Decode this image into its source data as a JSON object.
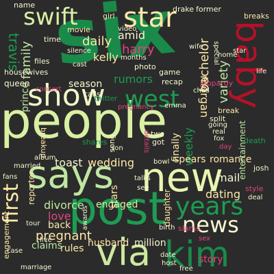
{
  "words": [
    {
      "text": "six",
      "color": "#1a8a4a"
    },
    {
      "text": "people",
      "color": "#d9f0a3"
    },
    {
      "text": "post",
      "color": "#1e9c52"
    },
    {
      "text": "says",
      "color": "#bfe6a2"
    },
    {
      "text": "new",
      "color": "#e8f5b0"
    },
    {
      "text": "via",
      "color": "#cfe8a0"
    },
    {
      "text": "kim",
      "color": "#1a8a4a"
    },
    {
      "text": "show",
      "color": "#f0f7c8"
    },
    {
      "text": "baby",
      "color": "#b3122a"
    },
    {
      "text": "star",
      "color": "#ffe9a8"
    },
    {
      "text": "swift",
      "color": "#d9f0a3"
    },
    {
      "text": "west",
      "color": "#1e9c52"
    },
    {
      "text": "years",
      "color": "#1e9c52"
    },
    {
      "text": "news",
      "color": "#f7f7d0"
    },
    {
      "text": "first",
      "color": "#ffe9a8"
    },
    {
      "text": "family",
      "color": "#bfe6a2"
    },
    {
      "text": "prince",
      "color": "#bfe6a2"
    },
    {
      "text": "travis",
      "color": "#1e9c52"
    },
    {
      "text": "daily",
      "color": "#ffe9a8"
    },
    {
      "text": "harry",
      "color": "#e0457b"
    },
    {
      "text": "kelly",
      "color": "#ffe9a8"
    },
    {
      "text": "amid",
      "color": "#f7f7d0"
    },
    {
      "text": "rumors",
      "color": "#1e9c52"
    },
    {
      "text": "bachelor",
      "color": "#ffe9a8"
    },
    {
      "text": "variety",
      "color": "#bfe6a2"
    },
    {
      "text": "morgan",
      "color": "#ffe9a8"
    },
    {
      "text": "dating",
      "color": "#ffe9a8"
    },
    {
      "text": "pregnant",
      "color": "#ffe9a8"
    },
    {
      "text": "husband",
      "color": "#ffe9a8"
    },
    {
      "text": "million",
      "color": "#f7f7d0"
    },
    {
      "text": "rules",
      "color": "#ffe9a8"
    },
    {
      "text": "engaged",
      "color": "#d9f0a3"
    },
    {
      "text": "divorce",
      "color": "#bfe6a2"
    },
    {
      "text": "wedding",
      "color": "#ffe9a8"
    },
    {
      "text": "toast",
      "color": "#f7f7d0"
    },
    {
      "text": "love",
      "color": "#e0457b"
    },
    {
      "text": "mail",
      "color": "#f7f7d0"
    },
    {
      "text": "romance",
      "color": "#ffe9a8"
    },
    {
      "text": "season",
      "color": "#f7f7d0"
    },
    {
      "text": "weekly",
      "color": "#1e9c52"
    },
    {
      "text": "finally",
      "color": "#ffe9a8"
    },
    {
      "text": "stars",
      "color": "#ffe9a8"
    },
    {
      "text": "spears",
      "color": "#ffe9a8"
    },
    {
      "text": "story",
      "color": "#e0457b"
    },
    {
      "text": "back",
      "color": "#ffe9a8"
    },
    {
      "text": "claims",
      "color": "#bfe6a2"
    },
    {
      "text": "daughter",
      "color": "#ffe9a8"
    },
    {
      "text": "reporter",
      "color": "#ffe9a8"
    },
    {
      "text": "engagement",
      "color": "#ffe9a8"
    },
    {
      "text": "entertainment",
      "color": "#bfe6a2"
    },
    {
      "text": "breakup",
      "color": "#ffe9a8"
    },
    {
      "text": "queen",
      "color": "#f7f7d0"
    },
    {
      "text": "movie",
      "color": "#ffe9a8"
    },
    {
      "text": "girl",
      "color": "#ffe9a8"
    },
    {
      "text": "video",
      "color": "#f7f7d0"
    },
    {
      "text": "drake",
      "color": "#f7f7d0"
    },
    {
      "text": "former",
      "color": "#f7f7d0"
    },
    {
      "text": "breaks",
      "color": "#ffe9a8"
    },
    {
      "text": "life",
      "color": "#f7f7d0"
    },
    {
      "text": "name",
      "color": "#f7f7d0"
    },
    {
      "text": "time",
      "color": "#f7f7d0"
    },
    {
      "text": "files",
      "color": "#f7f7d0"
    },
    {
      "text": "housewives",
      "color": "#f7f7d0"
    },
    {
      "text": "silence",
      "color": "#f7f7d0"
    },
    {
      "text": "photo",
      "color": "#f7f7d0"
    },
    {
      "text": "game",
      "color": "#f7f7d0"
    },
    {
      "text": "recap",
      "color": "#f7f7d0"
    },
    {
      "text": "home",
      "color": "#f7f7d0"
    },
    {
      "text": "special",
      "color": "#f7f7d0"
    },
    {
      "text": "jeopardy",
      "color": "#e0457b"
    },
    {
      "text": "child",
      "color": "#f7f7d0"
    },
    {
      "text": "break",
      "color": "#ffe9a8"
    },
    {
      "text": "split",
      "color": "#f7f7d0"
    },
    {
      "text": "going",
      "color": "#f7f7d0"
    },
    {
      "text": "real",
      "color": "#f7f7d0"
    },
    {
      "text": "fox",
      "color": "#f7f7d0"
    },
    {
      "text": "day",
      "color": "#e0457b"
    },
    {
      "text": "death",
      "color": "#1e9c52"
    },
    {
      "text": "josh",
      "color": "#f7f7d0"
    },
    {
      "text": "style",
      "color": "#e0457b"
    },
    {
      "text": "deal",
      "color": "#f7f7d0"
    },
    {
      "text": "calls",
      "color": "#f7f7d0"
    },
    {
      "text": "pregnancy",
      "color": "#e0457b"
    },
    {
      "text": "emma",
      "color": "#f7f7d0"
    },
    {
      "text": "song",
      "color": "#f7f7d0"
    },
    {
      "text": "two",
      "color": "#f7f7d0"
    },
    {
      "text": "got",
      "color": "#f7f7d0"
    },
    {
      "text": "details",
      "color": "#e0457b"
    },
    {
      "text": "shares",
      "color": "#1e9c52"
    },
    {
      "text": "son",
      "color": "#f7f7d0"
    },
    {
      "text": "bowl",
      "color": "#f7f7d0"
    },
    {
      "text": "album",
      "color": "#f7f7d0"
    },
    {
      "text": "married",
      "color": "#f7f7d0"
    },
    {
      "text": "fans",
      "color": "#f7f7d0"
    },
    {
      "text": "tour",
      "color": "#f7f7d0"
    },
    {
      "text": "live",
      "color": "#f7f7d0"
    },
    {
      "text": "case",
      "color": "#f7f7d0"
    },
    {
      "text": "marriage",
      "color": "#f7f7d0"
    },
    {
      "text": "awards",
      "color": "#f7f7d0"
    },
    {
      "text": "talks",
      "color": "#f7f7d0"
    },
    {
      "text": "see",
      "color": "#f7f7d0"
    },
    {
      "text": "slams",
      "color": "#e0457b"
    },
    {
      "text": "sex",
      "color": "#e0457b"
    },
    {
      "text": "date",
      "color": "#f7f7d0"
    },
    {
      "text": "host",
      "color": "#f7f7d0"
    },
    {
      "text": "free",
      "color": "#f7f7d0"
    },
    {
      "text": "birth",
      "color": "#f7f7d0"
    },
    {
      "text": "wife",
      "color": "#f7f7d0"
    },
    {
      "text": "concert",
      "color": "#e0457b"
    },
    {
      "text": "months",
      "color": "#f7f7d0"
    },
    {
      "text": "cast",
      "color": "#f7f7d0"
    },
    {
      "text": "twitter",
      "color": "#1e9c52"
    },
    {
      "text": "star",
      "color": "#f7f7d0"
    }
  ]
}
